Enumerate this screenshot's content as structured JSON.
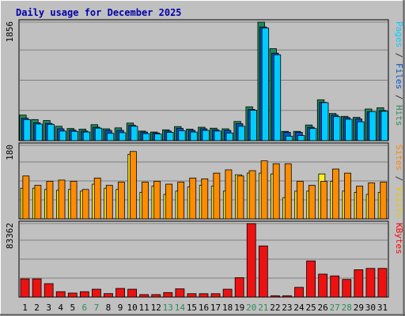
{
  "chart_data": {
    "type": "bar",
    "title": "Daily usage for December 2025",
    "categories": [
      "1",
      "2",
      "3",
      "4",
      "5",
      "6",
      "7",
      "8",
      "9",
      "10",
      "11",
      "12",
      "13",
      "14",
      "15",
      "16",
      "17",
      "18",
      "19",
      "20",
      "21",
      "22",
      "23",
      "24",
      "25",
      "26",
      "27",
      "28",
      "29",
      "30",
      "31"
    ],
    "weekend_days": [
      "6",
      "7",
      "13",
      "14",
      "20",
      "21",
      "27",
      "28"
    ],
    "panels": [
      {
        "name": "pages-files-hits",
        "max_label": "1856",
        "ylim": [
          0,
          1856
        ],
        "grid": true,
        "axis_label_parts": [
          {
            "text": "Pages",
            "color": "#00ccff"
          },
          {
            "text": " / ",
            "color": "#333333"
          },
          {
            "text": "Files",
            "color": "#0055cc"
          },
          {
            "text": " / ",
            "color": "#333333"
          },
          {
            "text": "Hits",
            "color": "#2e8b57"
          }
        ],
        "series": [
          {
            "name": "Hits",
            "color": "#1e8a5a",
            "values": [
              400,
              330,
              315,
              225,
              190,
              180,
              250,
              185,
              200,
              275,
              150,
              135,
              170,
              220,
              180,
              210,
              195,
              185,
              300,
              530,
              1856,
              1440,
              145,
              145,
              245,
              640,
              425,
              380,
              365,
              495,
              515
            ]
          },
          {
            "name": "Files",
            "color": "#0055cc",
            "values": [
              350,
              280,
              270,
              185,
              165,
              150,
              210,
              160,
              160,
              240,
              135,
              120,
              150,
              190,
              160,
              185,
              170,
              160,
              265,
              490,
              1780,
              1370,
              130,
              130,
              210,
              600,
              400,
              360,
              340,
              450,
              470
            ]
          },
          {
            "name": "Pages",
            "color": "#00ccff",
            "values": [
              330,
              260,
              255,
              150,
              145,
              135,
              195,
              115,
              125,
              225,
              110,
              105,
              130,
              155,
              135,
              160,
              150,
              120,
              225,
              475,
              1765,
              1345,
              70,
              80,
              190,
              595,
              375,
              335,
              295,
              455,
              460
            ]
          }
        ]
      },
      {
        "name": "visits-sites",
        "max_label": "180",
        "ylim": [
          0,
          180
        ],
        "grid": true,
        "axis_label_parts": [
          {
            "text": "Sites",
            "color": "#ff8800"
          },
          {
            "text": " / ",
            "color": "#333333"
          },
          {
            "text": "Visits",
            "color": "#e6c800"
          }
        ],
        "series": [
          {
            "name": "Visits",
            "color": "#ffee22",
            "values": [
              75,
              75,
              72,
              70,
              72,
              68,
              85,
              75,
              72,
              158,
              65,
              80,
              60,
              68,
              78,
              82,
              80,
              68,
              108,
              112,
              112,
              110,
              52,
              68,
              68,
              110,
              92,
              68,
              65,
              60,
              65
            ]
          },
          {
            "name": "Sites",
            "color": "#ff8c00",
            "values": [
              105,
              82,
              92,
              95,
              92,
              72,
              100,
              82,
              90,
              165,
              90,
              92,
              85,
              90,
              100,
              98,
              112,
              120,
              105,
              118,
              142,
              135,
              135,
              92,
              82,
              92,
              122,
              112,
              80,
              88,
              90
            ]
          }
        ]
      },
      {
        "name": "kbytes",
        "max_label": "83362",
        "ylim": [
          0,
          83362
        ],
        "grid": true,
        "axis_label_parts": [
          {
            "text": "KBytes",
            "color": "#ff0000"
          }
        ],
        "series": [
          {
            "name": "KBytes",
            "color": "#ee1111",
            "values": [
              20600,
              20600,
              15200,
              6100,
              4500,
              6100,
              8900,
              3900,
              9800,
              8900,
              2800,
              2800,
              5100,
              9300,
              3800,
              3800,
              3800,
              8900,
              22000,
              83362,
              58000,
              1500,
              1500,
              11000,
              41000,
              26000,
              24000,
              20000,
              31000,
              32500,
              32500
            ]
          }
        ]
      }
    ]
  }
}
